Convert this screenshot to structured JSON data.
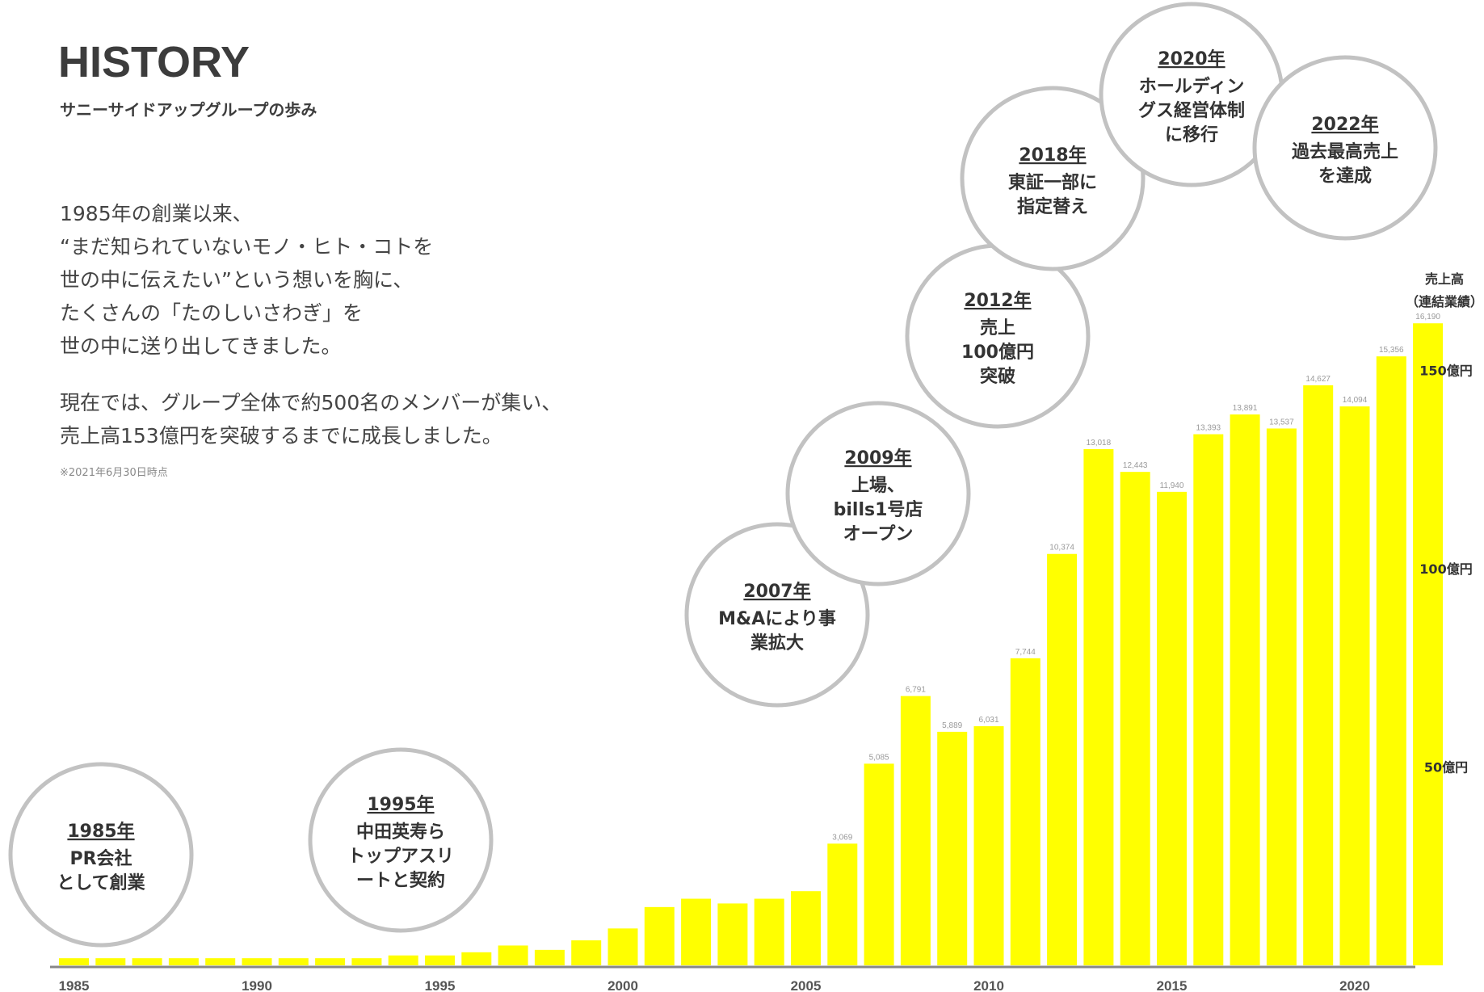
{
  "header": {
    "title": "HISTORY",
    "subtitle": "サニーサイドアップグループの歩み"
  },
  "intro": {
    "paragraph1": [
      "1985年の創業以来、",
      "“まだ知られていないモノ・ヒト・コトを",
      "世の中に伝えたい”という想いを胸に、",
      "たくさんの「たのしいさわぎ」を",
      "世の中に送り出してきました。"
    ],
    "paragraph2": [
      "現在では、グループ全体で約500名のメンバーが集い、",
      "売上高153億円を突破するまでに成長しました。"
    ],
    "footnote": "※2021年6月30日時点"
  },
  "milestones": [
    {
      "year": "1985年",
      "lines": [
        "PR会社",
        "として創業"
      ]
    },
    {
      "year": "1995年",
      "lines": [
        "中田英寿ら",
        "トップアスリ",
        "ートと契約"
      ]
    },
    {
      "year": "2007年",
      "lines": [
        "M&Aにより事",
        "業拡大"
      ]
    },
    {
      "year": "2009年",
      "lines": [
        "上場、",
        "bills1号店",
        "オープン"
      ]
    },
    {
      "year": "2012年",
      "lines": [
        "売上",
        "100億円",
        "突破"
      ]
    },
    {
      "year": "2018年",
      "lines": [
        "東証一部に",
        "指定替え"
      ]
    },
    {
      "year": "2020年",
      "lines": [
        "ホールディン",
        "グス経営体制",
        "に移行"
      ]
    },
    {
      "year": "2022年",
      "lines": [
        "過去最高売上",
        "を達成"
      ]
    }
  ],
  "colors": {
    "bar": "#ffff00",
    "bubble_border": "#c2c2c2",
    "axis": "#888888"
  },
  "chart_data": {
    "type": "bar",
    "y_axis_title": [
      "売上高",
      "（連結業績）"
    ],
    "y_unit": "百万円",
    "y_ticks": [
      {
        "value": 5000,
        "label": "50億円"
      },
      {
        "value": 10000,
        "label": "100億円"
      },
      {
        "value": 15000,
        "label": "150億円"
      }
    ],
    "x_tick_labels": [
      "1985",
      "1990",
      "1995",
      "2000",
      "2005",
      "2010",
      "2015",
      "2020"
    ],
    "categories": [
      1985,
      1986,
      1987,
      1988,
      1989,
      1990,
      1991,
      1992,
      1993,
      1994,
      1995,
      1996,
      1997,
      1998,
      1999,
      2000,
      2001,
      2002,
      2003,
      2004,
      2005,
      2006,
      2007,
      2008,
      2009,
      2010,
      2011,
      2012,
      2013,
      2014,
      2015,
      2016,
      2017,
      2018,
      2019,
      2020,
      2021,
      2022
    ],
    "values": [
      180,
      180,
      180,
      180,
      180,
      180,
      180,
      180,
      180,
      250,
      250,
      330,
      500,
      390,
      630,
      930,
      1470,
      1680,
      1560,
      1680,
      1870,
      3069,
      5085,
      6791,
      5889,
      6031,
      7744,
      10374,
      13018,
      12443,
      11940,
      13393,
      13891,
      13537,
      14627,
      14094,
      15356,
      16190
    ],
    "value_labels": [
      "",
      "",
      "",
      "",
      "",
      "",
      "",
      "",
      "",
      "",
      "",
      "",
      "",
      "",
      "",
      "",
      "",
      "",
      "",
      "",
      "",
      "3,069",
      "5,085",
      "6,791",
      "5,889",
      "6,031",
      "7,744",
      "10,374",
      "13,018",
      "12,443",
      "11,940",
      "13,393",
      "13,891",
      "13,537",
      "14,627",
      "14,094",
      "15,356",
      "16,190"
    ],
    "ylim": [
      0,
      16500
    ]
  }
}
